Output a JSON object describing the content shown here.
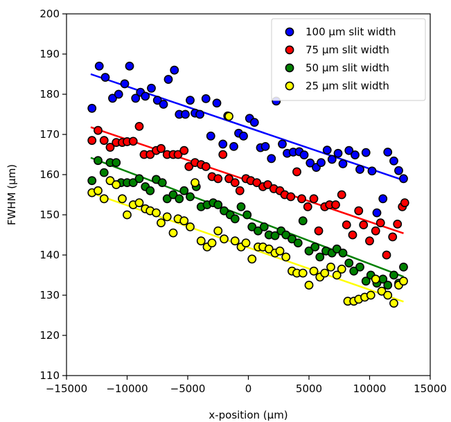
{
  "chart_data": {
    "type": "scatter",
    "title": "",
    "xlabel": "x-position (μm)",
    "ylabel": "FWHM (μm)",
    "xlim": [
      -15000,
      15000
    ],
    "ylim": [
      110,
      200
    ],
    "xticks": [
      -15000,
      -10000,
      -5000,
      0,
      5000,
      10000,
      15000
    ],
    "xtick_labels": [
      "−15000",
      "−10000",
      "−5000",
      "0",
      "5000",
      "10000",
      "15000"
    ],
    "yticks": [
      110,
      120,
      130,
      140,
      150,
      160,
      170,
      180,
      190,
      200
    ],
    "ytick_labels": [
      "110",
      "120",
      "130",
      "140",
      "150",
      "160",
      "170",
      "180",
      "190",
      "200"
    ],
    "grid": false,
    "legend_position": "top-right",
    "series": [
      {
        "name": "100 μm slit width",
        "color": "#0000ff",
        "fit": {
          "x0": -13000,
          "y0": 185,
          "x1": 12800,
          "y1": 158.6
        },
        "x": [
          -12900,
          -12300,
          -11800,
          -11200,
          -10700,
          -10200,
          -9800,
          -9300,
          -8900,
          -8500,
          -8000,
          -7500,
          -7000,
          -6600,
          -6100,
          -5700,
          -5200,
          -4800,
          -4400,
          -4000,
          -3500,
          -3100,
          -2600,
          -2100,
          -1700,
          -1200,
          -800,
          -400,
          100,
          500,
          1000,
          1400,
          1900,
          2300,
          2800,
          3200,
          3700,
          4200,
          4600,
          5100,
          5600,
          6000,
          6500,
          6900,
          7400,
          7800,
          8300,
          8800,
          9200,
          9700,
          10200,
          10600,
          11100,
          11500,
          12000,
          12400,
          12800
        ],
        "y": [
          176.5,
          187.0,
          184.2,
          179.0,
          180.0,
          182.6,
          187.0,
          179.0,
          180.5,
          179.5,
          181.5,
          178.5,
          177.5,
          183.7,
          186.0,
          175.0,
          175.0,
          178.5,
          175.3,
          175.0,
          178.9,
          169.6,
          177.8,
          167.6,
          174.6,
          167.0,
          170.3,
          169.6,
          174.0,
          173.0,
          166.7,
          167.0,
          164.0,
          178.3,
          167.6,
          165.3,
          165.6,
          165.7,
          164.9,
          162.9,
          161.8,
          163.0,
          166.1,
          163.8,
          165.3,
          162.7,
          166.0,
          164.9,
          161.3,
          165.5,
          160.9,
          150.5,
          154.0,
          165.6,
          163.4,
          161.0,
          159.0
        ]
      },
      {
        "name": "75 μm slit width",
        "color": "#ff0000",
        "fit": {
          "x0": -13000,
          "y0": 171.8,
          "x1": 12800,
          "y1": 145.4
        },
        "x": [
          -12900,
          -12400,
          -11900,
          -11400,
          -10900,
          -10400,
          -10000,
          -9500,
          -9000,
          -8600,
          -8100,
          -7600,
          -7200,
          -6700,
          -6200,
          -5800,
          -5300,
          -4900,
          -4400,
          -3900,
          -3500,
          -3000,
          -2500,
          -2100,
          -1600,
          -1100,
          -700,
          -200,
          200,
          700,
          1200,
          1600,
          2100,
          2600,
          3000,
          3500,
          4000,
          4400,
          4900,
          5400,
          5800,
          6300,
          6700,
          7200,
          7700,
          8100,
          8600,
          9100,
          9500,
          10000,
          10500,
          10900,
          11400,
          11900,
          12300,
          12700,
          12900
        ],
        "y": [
          168.5,
          171.0,
          168.5,
          166.8,
          168.0,
          168.0,
          168.2,
          168.3,
          172.0,
          165.0,
          165.0,
          166.0,
          166.5,
          165.0,
          165.0,
          165.0,
          166.0,
          162.0,
          163.0,
          162.5,
          162.0,
          159.5,
          159.0,
          165.0,
          159.0,
          158.0,
          156.0,
          159.0,
          158.5,
          158.0,
          157.0,
          157.5,
          156.5,
          156.0,
          155.0,
          154.5,
          160.7,
          154.0,
          152.0,
          154.0,
          146.0,
          152.0,
          152.5,
          152.5,
          155.0,
          147.5,
          145.0,
          151.0,
          147.5,
          143.5,
          146.0,
          148.0,
          140.0,
          144.5,
          147.7,
          152.0,
          153.0
        ]
      },
      {
        "name": "50 μm slit width",
        "color": "#008000",
        "fit": {
          "x0": -13000,
          "y0": 164.2,
          "x1": 12800,
          "y1": 134.6
        },
        "x": [
          -12900,
          -12400,
          -11900,
          -11400,
          -10900,
          -10500,
          -10000,
          -9500,
          -9000,
          -8500,
          -8100,
          -7600,
          -7100,
          -6700,
          -6200,
          -5700,
          -5300,
          -4800,
          -4300,
          -3900,
          -3400,
          -2900,
          -2500,
          -2000,
          -1500,
          -1100,
          -600,
          -100,
          300,
          800,
          1300,
          1700,
          2200,
          2700,
          3100,
          3600,
          4100,
          4500,
          5000,
          5500,
          5900,
          6400,
          6900,
          7300,
          7800,
          8300,
          8700,
          9200,
          9700,
          10100,
          10600,
          11100,
          11500,
          12000,
          12400,
          12800
        ],
        "y": [
          158.5,
          163.5,
          160.5,
          163.0,
          163.0,
          158.0,
          158.0,
          158.0,
          159.0,
          157.0,
          156.0,
          158.8,
          158.0,
          154.0,
          155.0,
          154.0,
          156.0,
          154.5,
          157.0,
          152.0,
          152.5,
          153.0,
          152.5,
          151.0,
          150.0,
          149.0,
          152.0,
          150.0,
          147.0,
          146.0,
          147.0,
          145.0,
          144.8,
          146.0,
          145.0,
          144.0,
          143.0,
          148.5,
          141.0,
          142.0,
          139.5,
          141.0,
          140.5,
          141.5,
          140.5,
          138.0,
          136.0,
          137.0,
          133.5,
          135.0,
          133.0,
          134.0,
          132.5,
          135.0,
          133.0,
          137.0
        ]
      },
      {
        "name": "25 μm slit width",
        "color": "#ffff00",
        "fit": {
          "x0": -13000,
          "y0": 155.5,
          "x1": 12800,
          "y1": 128.4
        },
        "x": [
          -12900,
          -12400,
          -11900,
          -11400,
          -10900,
          -10400,
          -10000,
          -9500,
          -9000,
          -8500,
          -8100,
          -7600,
          -7200,
          -6700,
          -6200,
          -5800,
          -5300,
          -4800,
          -4400,
          -3900,
          -3400,
          -3000,
          -2500,
          -2000,
          -1600,
          -1100,
          -600,
          -200,
          300,
          800,
          1200,
          1700,
          2200,
          2600,
          3100,
          3600,
          4000,
          4500,
          5000,
          5400,
          5900,
          6300,
          6800,
          7300,
          7700,
          8200,
          8700,
          9100,
          9600,
          10100,
          10500,
          11000,
          11500,
          12000,
          12400,
          12800
        ],
        "y": [
          155.5,
          156.0,
          154.0,
          158.5,
          157.5,
          154.0,
          150.0,
          152.5,
          153.0,
          151.5,
          151.0,
          150.5,
          148.0,
          149.5,
          145.5,
          149.0,
          148.5,
          147.0,
          158.0,
          143.5,
          142.0,
          143.0,
          146.0,
          144.0,
          174.5,
          143.5,
          142.0,
          143.0,
          139.0,
          142.0,
          142.0,
          141.5,
          140.5,
          141.0,
          139.5,
          136.0,
          135.5,
          135.5,
          132.5,
          136.0,
          134.5,
          135.5,
          137.0,
          135.0,
          136.5,
          128.5,
          128.5,
          129.0,
          129.5,
          130.0,
          134.0,
          131.0,
          130.0,
          128.0,
          132.5,
          133.5
        ]
      }
    ]
  }
}
